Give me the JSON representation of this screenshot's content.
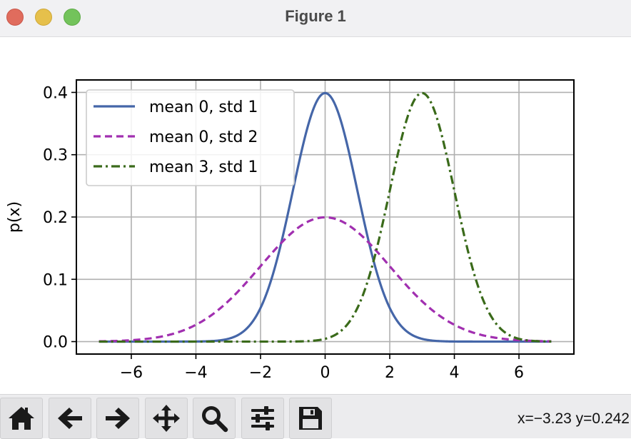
{
  "window": {
    "title": "Figure 1"
  },
  "toolbar": {
    "buttons": [
      {
        "name": "home-button",
        "icon": "home-icon"
      },
      {
        "name": "back-button",
        "icon": "arrow-left-icon"
      },
      {
        "name": "forward-button",
        "icon": "arrow-right-icon"
      },
      {
        "name": "pan-button",
        "icon": "move-icon"
      },
      {
        "name": "zoom-button",
        "icon": "zoom-icon"
      },
      {
        "name": "configure-subplots-button",
        "icon": "sliders-icon"
      },
      {
        "name": "save-button",
        "icon": "floppy-disk-icon"
      }
    ],
    "coords": "x=−3.23 y=0.242"
  },
  "chart_data": {
    "type": "line",
    "title": "",
    "xlabel": "",
    "ylabel": "p(x)",
    "xlim": [
      -7.7,
      7.7
    ],
    "ylim": [
      -0.02,
      0.42
    ],
    "x_range": [
      -7,
      7
    ],
    "xticks": [
      -6,
      -4,
      -2,
      0,
      2,
      4,
      6
    ],
    "xtick_labels": [
      "−6",
      "−4",
      "−2",
      "0",
      "2",
      "4",
      "6"
    ],
    "yticks": [
      0.0,
      0.1,
      0.2,
      0.3,
      0.4
    ],
    "ytick_labels": [
      "0.0",
      "0.1",
      "0.2",
      "0.3",
      "0.4"
    ],
    "grid": true,
    "legend_position": "upper-left",
    "series": [
      {
        "name": "mean 0, std 1",
        "label": "mean 0, std 1",
        "mean": 0,
        "std": 1,
        "color": "#4566a8",
        "style": "solid"
      },
      {
        "name": "mean 0, std 2",
        "label": "mean 0, std 2",
        "mean": 0,
        "std": 2,
        "color": "#a12fb0",
        "style": "dashed"
      },
      {
        "name": "mean 3, std 1",
        "label": "mean 3, std 1",
        "mean": 3,
        "std": 1,
        "color": "#3a6a1a",
        "style": "dashdot"
      }
    ]
  }
}
